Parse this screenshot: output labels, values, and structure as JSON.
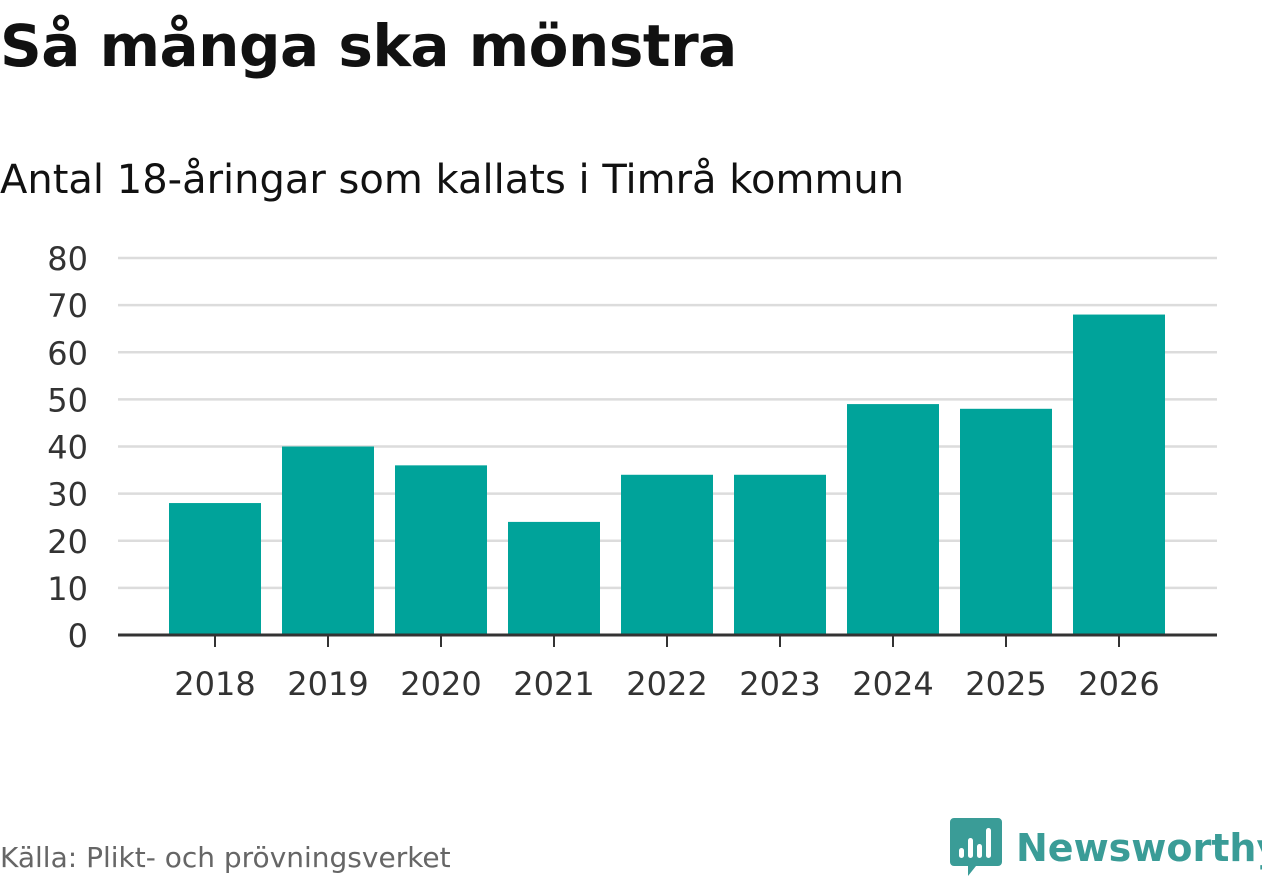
{
  "header": {
    "title": "Så många ska mönstra",
    "subtitle": "Antal 18-åringar som kallats i Timrå kommun"
  },
  "footer": {
    "source": "Källa: Plikt- och prövningsverket",
    "brand": "Newsworthy",
    "brand_icon": "bar-chart-speech-bubble-icon"
  },
  "colors": {
    "bar": "#00a39a",
    "grid": "#dcdcdc",
    "axis": "#333333",
    "brand": "#3a9c97",
    "text": "#111111",
    "source_text": "#666666"
  },
  "chart_data": {
    "type": "bar",
    "title": "Så många ska mönstra",
    "subtitle": "Antal 18-åringar som kallats i Timrå kommun",
    "categories": [
      "2018",
      "2019",
      "2020",
      "2021",
      "2022",
      "2023",
      "2024",
      "2025",
      "2026"
    ],
    "values": [
      28,
      40,
      36,
      24,
      34,
      34,
      49,
      48,
      68
    ],
    "xlabel": "",
    "ylabel": "",
    "ylim": [
      0,
      80
    ],
    "yticks": [
      0,
      10,
      20,
      30,
      40,
      50,
      60,
      70,
      80
    ],
    "grid": true,
    "legend": "none"
  }
}
